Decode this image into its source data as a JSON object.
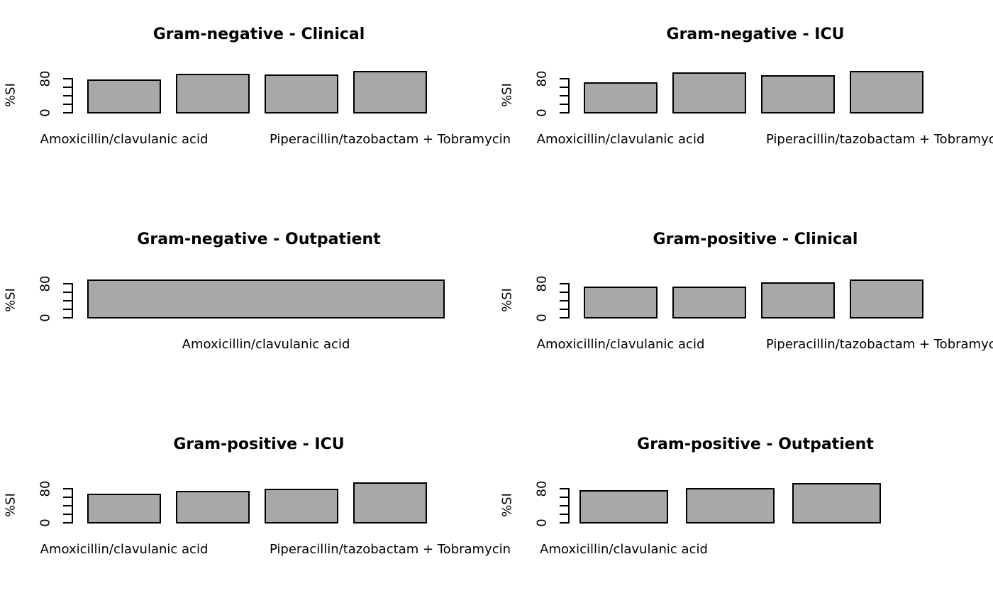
{
  "figure": {
    "background": "#ffffff",
    "bar_fill": "#a8a8a8",
    "bar_border": "#000000",
    "grid": "3 rows x 2 columns of barplots, no plot frame, no x-axis line"
  },
  "chart_data": [
    {
      "type": "bar",
      "title": "Gram-negative - Clinical",
      "grid_pos": {
        "row": 0,
        "col": 0
      },
      "ylabel": "%SI",
      "yaxis": {
        "range": [
          0,
          80
        ],
        "ticks": [
          0,
          20,
          40,
          60,
          80
        ],
        "visible_tick_labels": [
          "0",
          "80"
        ],
        "tick_label_rotation": "90deg counterclockwise"
      },
      "values": [
        77,
        90,
        88,
        97
      ],
      "visible_x_labels": [
        {
          "bar_index": 0,
          "text": "Amoxicillin/clavulanic acid"
        },
        {
          "bar_index": 3,
          "text": "Piperacillin/tazobactam + Tobramycin"
        }
      ]
    },
    {
      "type": "bar",
      "title": "Gram-negative - ICU",
      "grid_pos": {
        "row": 0,
        "col": 1
      },
      "ylabel": "%SI",
      "yaxis": {
        "range": [
          0,
          80
        ],
        "ticks": [
          0,
          20,
          40,
          60,
          80
        ],
        "visible_tick_labels": [
          "0",
          "80"
        ],
        "tick_label_rotation": "90deg counterclockwise"
      },
      "values": [
        70,
        93,
        86,
        97
      ],
      "visible_x_labels": [
        {
          "bar_index": 0,
          "text": "Amoxicillin/clavulanic acid"
        },
        {
          "bar_index": 3,
          "text": "Piperacillin/tazobactam + Tobramycin"
        }
      ]
    },
    {
      "type": "bar",
      "title": "Gram-negative - Outpatient",
      "grid_pos": {
        "row": 1,
        "col": 0
      },
      "ylabel": "%SI",
      "yaxis": {
        "range": [
          0,
          80
        ],
        "ticks": [
          0,
          20,
          40,
          60,
          80
        ],
        "visible_tick_labels": [
          "0",
          "80"
        ],
        "tick_label_rotation": "90deg counterclockwise"
      },
      "values": [
        88
      ],
      "visible_x_labels": [
        {
          "bar_index": 0,
          "text": "Amoxicillin/clavulanic acid"
        }
      ]
    },
    {
      "type": "bar",
      "title": "Gram-positive - Clinical",
      "grid_pos": {
        "row": 1,
        "col": 1
      },
      "ylabel": "%SI",
      "yaxis": {
        "range": [
          0,
          80
        ],
        "ticks": [
          0,
          20,
          40,
          60,
          80
        ],
        "visible_tick_labels": [
          "0",
          "80"
        ],
        "tick_label_rotation": "90deg counterclockwise"
      },
      "values": [
        72,
        71,
        82,
        89
      ],
      "visible_x_labels": [
        {
          "bar_index": 0,
          "text": "Amoxicillin/clavulanic acid"
        },
        {
          "bar_index": 3,
          "text": "Piperacillin/tazobactam + Tobramycin"
        }
      ]
    },
    {
      "type": "bar",
      "title": "Gram-positive - ICU",
      "grid_pos": {
        "row": 2,
        "col": 0
      },
      "ylabel": "%SI",
      "yaxis": {
        "range": [
          0,
          80
        ],
        "ticks": [
          0,
          20,
          40,
          60,
          80
        ],
        "visible_tick_labels": [
          "0",
          "80"
        ],
        "tick_label_rotation": "90deg counterclockwise"
      },
      "values": [
        67,
        73,
        79,
        93
      ],
      "visible_x_labels": [
        {
          "bar_index": 0,
          "text": "Amoxicillin/clavulanic acid"
        },
        {
          "bar_index": 3,
          "text": "Piperacillin/tazobactam + Tobramycin"
        }
      ]
    },
    {
      "type": "bar",
      "title": "Gram-positive - Outpatient",
      "grid_pos": {
        "row": 2,
        "col": 1
      },
      "ylabel": "%SI",
      "yaxis": {
        "range": [
          0,
          80
        ],
        "ticks": [
          0,
          20,
          40,
          60,
          80
        ],
        "visible_tick_labels": [
          "0",
          "80"
        ],
        "tick_label_rotation": "90deg counterclockwise"
      },
      "values": [
        75,
        80,
        92
      ],
      "visible_x_labels": [
        {
          "bar_index": 0,
          "text": "Amoxicillin/clavulanic acid"
        }
      ]
    }
  ]
}
